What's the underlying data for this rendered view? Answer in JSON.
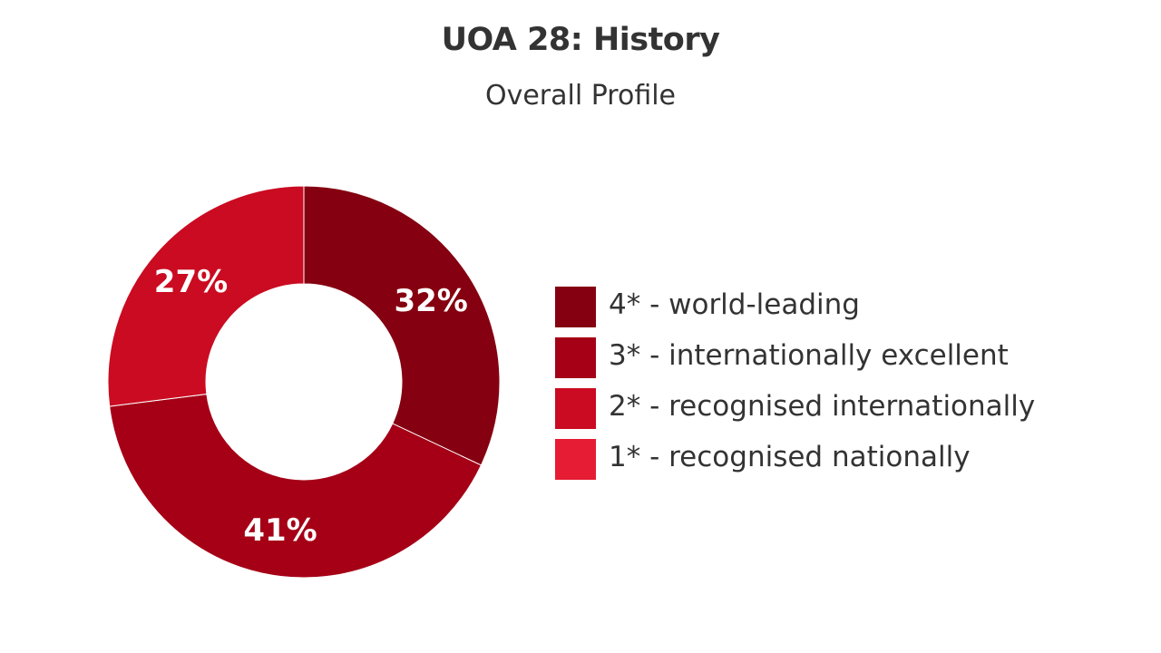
{
  "chart_data": {
    "type": "pie",
    "title": "UOA 28: History",
    "subtitle": "Overall Profile",
    "donut": true,
    "legend_position": "right",
    "slices": [
      {
        "name": "4* - world-leading",
        "value": 32,
        "label": "32%",
        "color": "#850010"
      },
      {
        "name": "3* - internationally excellent",
        "value": 41,
        "label": "41%",
        "color": "#a50016"
      },
      {
        "name": "2* - recognised internationally",
        "value": 27,
        "label": "27%",
        "color": "#ca0b21"
      },
      {
        "name": "1* - recognised nationally",
        "value": 0,
        "label": "",
        "color": "#e51c33"
      }
    ]
  }
}
